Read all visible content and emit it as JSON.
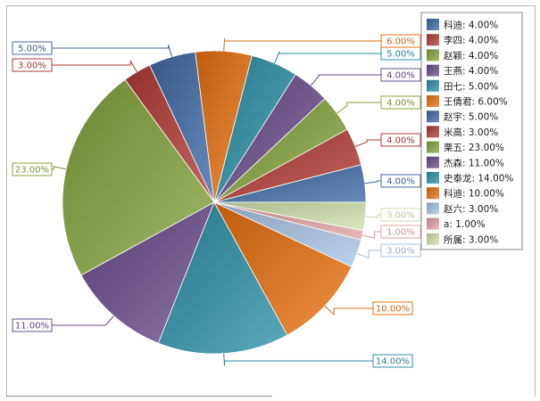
{
  "chart_data": {
    "type": "pie",
    "title": "",
    "slices": [
      {
        "label": "科迪",
        "value": 4.0,
        "legend": "科迪: 4.00%",
        "callout": "4.00%",
        "color": "#3f6aa6"
      },
      {
        "label": "李四",
        "value": 4.0,
        "legend": "李四: 4.00%",
        "callout": "4.00%",
        "color": "#b23b35"
      },
      {
        "label": "赵颖",
        "value": 4.0,
        "legend": "赵颖: 4.00%",
        "callout": "4.00%",
        "color": "#84a43c"
      },
      {
        "label": "王燕",
        "value": 4.0,
        "legend": "王燕: 4.00%",
        "callout": "4.00%",
        "color": "#6a4c8c"
      },
      {
        "label": "田七",
        "value": 5.0,
        "legend": "田七: 5.00%",
        "callout": "5.00%",
        "color": "#2c90a8"
      },
      {
        "label": "王倩君",
        "value": 6.0,
        "legend": "王倩君: 6.00%",
        "callout": "6.00%",
        "color": "#e8700e"
      },
      {
        "label": "赵宇",
        "value": 5.0,
        "legend": "赵宇: 5.00%",
        "callout": "5.00%",
        "color": "#3f6aa6"
      },
      {
        "label": "米高",
        "value": 3.0,
        "legend": "米高: 3.00%",
        "callout": "3.00%",
        "color": "#b23b35"
      },
      {
        "label": "栗五",
        "value": 23.0,
        "legend": "栗五: 23.00%",
        "callout": "23.00%",
        "color": "#84a43c"
      },
      {
        "label": "杰森",
        "value": 11.0,
        "legend": "杰森: 11.00%",
        "callout": "11.00%",
        "color": "#6a4c8c"
      },
      {
        "label": "史泰龙",
        "value": 14.0,
        "legend": "史泰龙: 14.00%",
        "callout": "14.00%",
        "color": "#2c90a8"
      },
      {
        "label": "科迪",
        "value": 10.0,
        "legend": "科迪: 10.00%",
        "callout": "10.00%",
        "color": "#e8700e"
      },
      {
        "label": "赵六",
        "value": 3.0,
        "legend": "赵六: 3.00%",
        "callout": "3.00%",
        "color": "#a9c4e4"
      },
      {
        "label": "a",
        "value": 1.0,
        "legend": "a: 1.00%",
        "callout": "1.00%",
        "color": "#e3a3a3"
      },
      {
        "label": "所属",
        "value": 3.0,
        "legend": "所属: 3.00%",
        "callout": "3.00%",
        "color": "#d2e2ad"
      }
    ],
    "start_angle_deg": 90,
    "direction": "counterclockwise",
    "legend_position": "top-right",
    "grid": false
  }
}
